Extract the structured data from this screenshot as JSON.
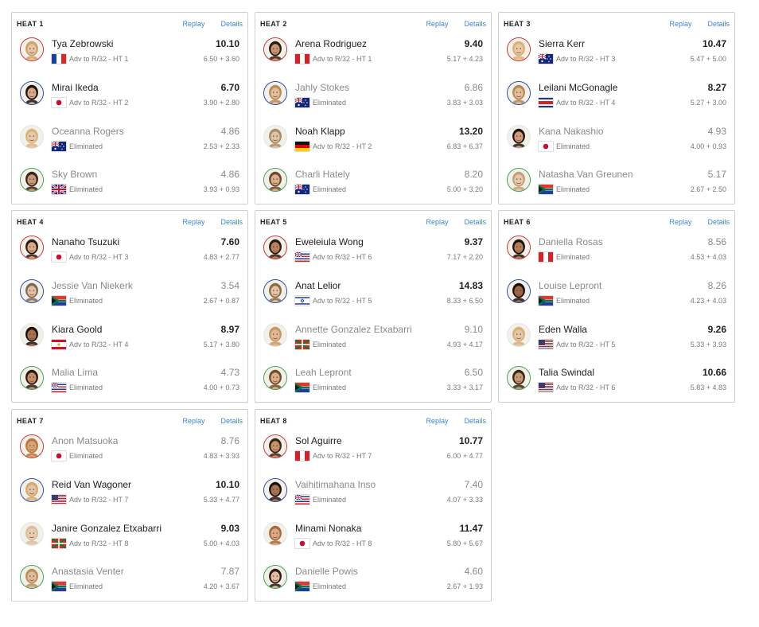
{
  "links": {
    "replay": "Replay",
    "details": "Details"
  },
  "heats": [
    {
      "title": "HEAT 1",
      "surfers": [
        {
          "name": "Tya Zebrowski",
          "score": "10.10",
          "flag": "FR",
          "status": "Adv to R/32 - HT 1",
          "waves": "6.50 + 3.60",
          "ring": "red",
          "eliminated": false,
          "skin": "#e6c4a6",
          "hair": "#c9a56a"
        },
        {
          "name": "Mirai Ikeda",
          "score": "6.70",
          "flag": "JP",
          "status": "Adv to R/32 - HT 2",
          "waves": "3.90 + 2.80",
          "ring": "blue",
          "eliminated": false,
          "skin": "#d8a98a",
          "hair": "#1c1410"
        },
        {
          "name": "Oceanna Rogers",
          "score": "4.86",
          "flag": "AU",
          "status": "Eliminated",
          "waves": "2.53 + 2.33",
          "ring": "none",
          "eliminated": true,
          "skin": "#e8c9ae",
          "hair": "#d9b57c"
        },
        {
          "name": "Sky Brown",
          "score": "4.86",
          "flag": "GB",
          "status": "Eliminated",
          "waves": "3.93 + 0.93",
          "ring": "green",
          "eliminated": true,
          "skin": "#c99a7a",
          "hair": "#3a2618"
        }
      ]
    },
    {
      "title": "HEAT 2",
      "surfers": [
        {
          "name": "Arena Rodriguez",
          "score": "9.40",
          "flag": "PE",
          "status": "Adv to R/32 - HT 1",
          "waves": "5.17 + 4.23",
          "ring": "red",
          "eliminated": false,
          "skin": "#c99572",
          "hair": "#2b1a10"
        },
        {
          "name": "Jahly Stokes",
          "score": "6.86",
          "flag": "AU",
          "status": "Eliminated",
          "waves": "3.83 + 3.03",
          "ring": "blue",
          "eliminated": true,
          "skin": "#e4bf9e",
          "hair": "#b98a52"
        },
        {
          "name": "Noah Klapp",
          "score": "13.20",
          "flag": "DE",
          "status": "Adv to R/32 - HT 2",
          "waves": "6.83 + 6.37",
          "ring": "none",
          "eliminated": false,
          "skin": "#e2c2a6",
          "hair": "#a88b68"
        },
        {
          "name": "Charli Hately",
          "score": "8.20",
          "flag": "AU",
          "status": "Eliminated",
          "waves": "5.00 + 3.20",
          "ring": "green",
          "eliminated": true,
          "skin": "#dcb08c",
          "hair": "#6a4a2a"
        }
      ]
    },
    {
      "title": "HEAT 3",
      "surfers": [
        {
          "name": "Sierra Kerr",
          "score": "10.47",
          "flag": "AU",
          "status": "Adv to R/32 - HT 3",
          "waves": "5.47 + 5.00",
          "ring": "red",
          "eliminated": false,
          "skin": "#e8c8a8",
          "hair": "#d8b272"
        },
        {
          "name": "Leilani McGonagle",
          "score": "8.27",
          "flag": "CR",
          "status": "Adv to R/32 - HT 4",
          "waves": "5.27 + 3.00",
          "ring": "blue",
          "eliminated": false,
          "skin": "#e2bd98",
          "hair": "#b48a58"
        },
        {
          "name": "Kana Nakashio",
          "score": "4.93",
          "flag": "JP",
          "status": "Eliminated",
          "waves": "4.00 + 0.93",
          "ring": "none",
          "eliminated": true,
          "skin": "#d49c7c",
          "hair": "#1e1510"
        },
        {
          "name": "Natasha Van Greunen",
          "score": "5.17",
          "flag": "ZA",
          "status": "Eliminated",
          "waves": "2.67 + 2.50",
          "ring": "green",
          "eliminated": true,
          "skin": "#e6c8ae",
          "hair": "#c2a27a"
        }
      ]
    },
    {
      "title": "HEAT 4",
      "surfers": [
        {
          "name": "Nanaho Tsuzuki",
          "score": "7.60",
          "flag": "JP",
          "status": "Adv to R/32 - HT 3",
          "waves": "4.83 + 2.77",
          "ring": "red",
          "eliminated": false,
          "skin": "#dcaa88",
          "hair": "#2a1c14"
        },
        {
          "name": "Jessie Van Niekerk",
          "score": "3.54",
          "flag": "ZA",
          "status": "Eliminated",
          "waves": "2.67 + 0.87",
          "ring": "blue",
          "eliminated": true,
          "skin": "#e2c0a2",
          "hair": "#7a6a58"
        },
        {
          "name": "Kiara Goold",
          "score": "8.97",
          "flag": "PF",
          "status": "Adv to R/32 - HT 4",
          "waves": "5.17 + 3.80",
          "ring": "none",
          "eliminated": false,
          "skin": "#a9714c",
          "hair": "#1a110c"
        },
        {
          "name": "Malia Lima",
          "score": "4.73",
          "flag": "HI",
          "status": "Eliminated",
          "waves": "4.00 + 0.73",
          "ring": "green",
          "eliminated": true,
          "skin": "#c28e6c",
          "hair": "#2a1a10"
        }
      ]
    },
    {
      "title": "HEAT 5",
      "surfers": [
        {
          "name": "Eweleiula Wong",
          "score": "9.37",
          "flag": "HI",
          "status": "Adv to R/32 - HT 6",
          "waves": "7.17 + 2.20",
          "ring": "red",
          "eliminated": false,
          "skin": "#b88460",
          "hair": "#2a1a10"
        },
        {
          "name": "Anat Lelior",
          "score": "14.83",
          "flag": "IL",
          "status": "Adv to R/32 - HT 5",
          "waves": "8.33 + 6.50",
          "ring": "blue",
          "eliminated": false,
          "skin": "#e4c4a6",
          "hair": "#8a6a44"
        },
        {
          "name": "Annette Gonzalez Etxabarri",
          "score": "9.10",
          "flag": "EU",
          "status": "Eliminated",
          "waves": "4.93 + 4.17",
          "ring": "none",
          "eliminated": true,
          "skin": "#e0b894",
          "hair": "#c49a64"
        },
        {
          "name": "Leah Lepront",
          "score": "6.50",
          "flag": "ZA",
          "status": "Eliminated",
          "waves": "3.33 + 3.17",
          "ring": "green",
          "eliminated": true,
          "skin": "#dcae88",
          "hair": "#6e4c2c"
        }
      ]
    },
    {
      "title": "HEAT 6",
      "surfers": [
        {
          "name": "Daniella Rosas",
          "score": "8.56",
          "flag": "PE",
          "status": "Eliminated",
          "waves": "4.53 + 4.03",
          "ring": "red",
          "eliminated": true,
          "skin": "#b47e5a",
          "hair": "#1c120c"
        },
        {
          "name": "Louise Lepront",
          "score": "8.26",
          "flag": "ZA",
          "status": "Eliminated",
          "waves": "4.23 + 4.03",
          "ring": "blue",
          "eliminated": true,
          "skin": "#9c6848",
          "hair": "#1a110b"
        },
        {
          "name": "Eden Walla",
          "score": "9.26",
          "flag": "US",
          "status": "Adv to R/32 - HT 5",
          "waves": "5.33 + 3.93",
          "ring": "none",
          "eliminated": false,
          "skin": "#e6c6a8",
          "hair": "#d6b27a"
        },
        {
          "name": "Talia Swindal",
          "score": "10.66",
          "flag": "US",
          "status": "Adv to R/32 - HT 6",
          "waves": "5.83 + 4.83",
          "ring": "green",
          "eliminated": false,
          "skin": "#c89a78",
          "hair": "#3a2818"
        }
      ]
    },
    {
      "title": "HEAT 7",
      "surfers": [
        {
          "name": "Anon Matsuoka",
          "score": "8.76",
          "flag": "JP",
          "status": "Eliminated",
          "waves": "4.83 + 3.93",
          "ring": "red",
          "eliminated": true,
          "skin": "#d8a478",
          "hair": "#b87a3a"
        },
        {
          "name": "Reid Van Wagoner",
          "score": "10.10",
          "flag": "US",
          "status": "Adv to R/32 - HT 7",
          "waves": "5.33 + 4.77",
          "ring": "blue",
          "eliminated": false,
          "skin": "#e4c4a4",
          "hair": "#d0aa70"
        },
        {
          "name": "Janire Gonzalez Etxabarri",
          "score": "9.03",
          "flag": "EU",
          "status": "Adv to R/32 - HT 8",
          "waves": "5.00 + 4.03",
          "ring": "none",
          "eliminated": false,
          "skin": "#e8ccb4",
          "hair": "#d8c09a"
        },
        {
          "name": "Anastasia Venter",
          "score": "7.87",
          "flag": "ZA",
          "status": "Eliminated",
          "waves": "4.20 + 3.67",
          "ring": "green",
          "eliminated": true,
          "skin": "#e0bc9a",
          "hair": "#b89064"
        }
      ]
    },
    {
      "title": "HEAT 8",
      "surfers": [
        {
          "name": "Sol Aguirre",
          "score": "10.77",
          "flag": "PE",
          "status": "Adv to R/32 - HT 7",
          "waves": "6.00 + 4.77",
          "ring": "red",
          "eliminated": false,
          "skin": "#c8946e",
          "hair": "#3a2414"
        },
        {
          "name": "Vaihitimahana Inso",
          "score": "7.40",
          "flag": "HI",
          "status": "Eliminated",
          "waves": "4.07 + 3.33",
          "ring": "blue",
          "eliminated": true,
          "skin": "#a87452",
          "hair": "#1c120c"
        },
        {
          "name": "Minami Nonaka",
          "score": "11.47",
          "flag": "JP",
          "status": "Adv to R/32 - HT 8",
          "waves": "5.80 + 5.67",
          "ring": "none",
          "eliminated": false,
          "skin": "#d8a888",
          "hair": "#a86a3a"
        },
        {
          "name": "Danielle Powis",
          "score": "4.60",
          "flag": "ZA",
          "status": "Eliminated",
          "waves": "2.67 + 1.93",
          "ring": "green",
          "eliminated": true,
          "skin": "#e0bea0",
          "hair": "#2a1a10"
        }
      ]
    }
  ]
}
